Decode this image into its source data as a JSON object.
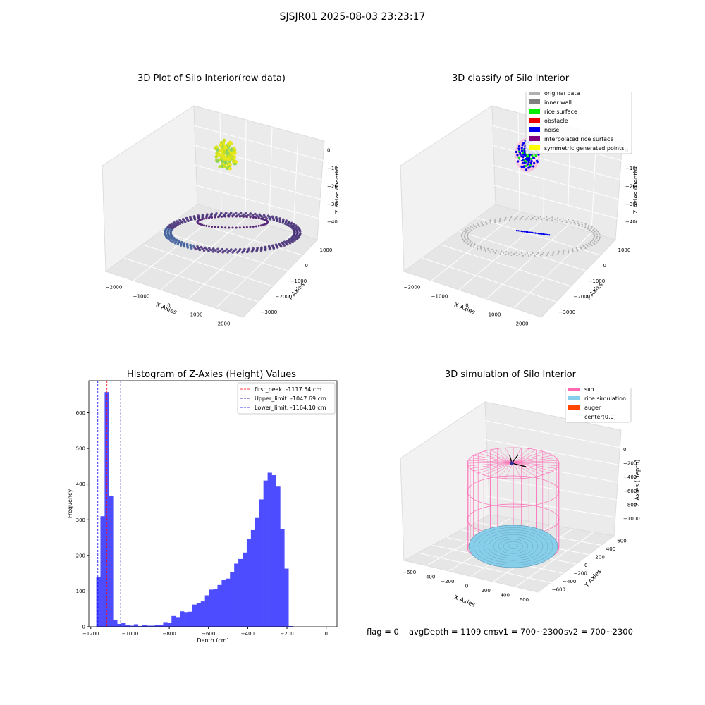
{
  "suptitle": "SJSJR01 2025-08-03 23:23:17",
  "status": {
    "flag": "flag = 0",
    "avg_depth": "avgDepth = 1109 cm",
    "sv1": "sv1 = 700~2300",
    "sv2": "sv2 = 700~2300"
  },
  "colors": {
    "raw_points": "#3a2a6e",
    "raw_top": "#e6e619",
    "original": "#b0b0b0",
    "inner_wall": "#808080",
    "rice_surface": "#00ee00",
    "obstacle": "#ee0000",
    "noise": "#0000ee",
    "interpolated": "#800080",
    "symmetric": "#ffff00",
    "silo": "#ff69b4",
    "rice_sim": "#87ceeb",
    "auger": "#ff4500",
    "hist_bar": "#4d4dff"
  },
  "chart_data": [
    {
      "type": "scatter",
      "title": "3D Plot of Silo Interior(row data)",
      "xlabel": "X Axies",
      "ylabel": "Y Axies",
      "zlabel": "Z Axies (Depth)",
      "x_ticks": [
        "−2000",
        "−1000",
        "0",
        "1000",
        "2000"
      ],
      "y_ticks": [
        "1000",
        "0",
        "−1000",
        "−2000",
        "−3000"
      ],
      "z_ticks": [
        "0",
        "−1000",
        "−2000",
        "−3000",
        "−4000"
      ]
    },
    {
      "type": "scatter",
      "title": "3D classify of Silo Interior",
      "xlabel": "X Axies",
      "ylabel": "Y Axies",
      "zlabel": "Z Axies (Depth)",
      "x_ticks": [
        "−2000",
        "−1000",
        "0",
        "1000",
        "2000"
      ],
      "y_ticks": [
        "1000",
        "0",
        "−1000",
        "−2000",
        "−3000"
      ],
      "z_ticks": [
        "0",
        "−1000",
        "−2000",
        "−3000",
        "−4000"
      ],
      "legend": [
        {
          "label": "original data",
          "color": "#b0b0b0"
        },
        {
          "label": "inner wall",
          "color": "#808080"
        },
        {
          "label": "rice surface",
          "color": "#00ee00"
        },
        {
          "label": "obstacle",
          "color": "#ee0000"
        },
        {
          "label": "noise",
          "color": "#0000ee"
        },
        {
          "label": "interpolated rice surface",
          "color": "#800080"
        },
        {
          "label": "symmetric generated points",
          "color": "#ffff00"
        }
      ]
    },
    {
      "type": "bar",
      "title": "Histogram of Z-Axies (Height) Values",
      "xlabel": "Depth (cm)",
      "ylabel": "Frequency",
      "xlim": [
        -1210,
        55
      ],
      "ylim": [
        0,
        690
      ],
      "x_ticks": [
        -1200,
        -1000,
        -800,
        -600,
        -400,
        -200,
        0
      ],
      "x_tick_labels": [
        "−1200",
        "−1000",
        "−800",
        "−600",
        "−400",
        "−200",
        "0"
      ],
      "y_ticks": [
        0,
        100,
        200,
        300,
        400,
        500,
        600
      ],
      "bin_width": 21.3,
      "bin_start": -1172,
      "values": [
        140,
        310,
        658,
        366,
        18,
        8,
        10,
        4,
        3,
        7,
        2,
        4,
        3,
        3,
        5,
        5,
        13,
        10,
        30,
        27,
        43,
        41,
        42,
        62,
        67,
        71,
        88,
        104,
        105,
        117,
        132,
        135,
        153,
        177,
        190,
        208,
        247,
        271,
        305,
        357,
        410,
        432,
        425,
        393,
        273,
        163,
        2
      ],
      "lines": [
        {
          "label": "first_peak: -1117.54 cm",
          "x": -1117.54,
          "color": "#ff0000"
        },
        {
          "label": "Upper_limit: -1047.69 cm",
          "x": -1047.69,
          "color": "#00008b"
        },
        {
          "label": "Lower_limit: -1164.10 cm",
          "x": -1164.1,
          "color": "#0000ff"
        }
      ],
      "legend_position": "upper-right"
    },
    {
      "type": "scatter",
      "title": "3D simulation of Silo Interior",
      "xlabel": "X Axies",
      "ylabel": "Y Axies",
      "zlabel": "Z Axies (Depth)",
      "x_ticks": [
        "−600",
        "−400",
        "−200",
        "0",
        "200",
        "400",
        "600"
      ],
      "y_ticks": [
        "600",
        "400",
        "200",
        "0",
        "−200",
        "−400",
        "−600"
      ],
      "z_ticks": [
        "0",
        "−200",
        "−400",
        "−600",
        "−800",
        "−1000"
      ],
      "legend": [
        {
          "label": "silo",
          "color": "#ff69b4"
        },
        {
          "label": "rice simulation",
          "color": "#87ceeb"
        },
        {
          "label": "auger",
          "color": "#ff4500"
        },
        {
          "label": "center(0,0)",
          "color": "#ffffff"
        }
      ]
    }
  ]
}
